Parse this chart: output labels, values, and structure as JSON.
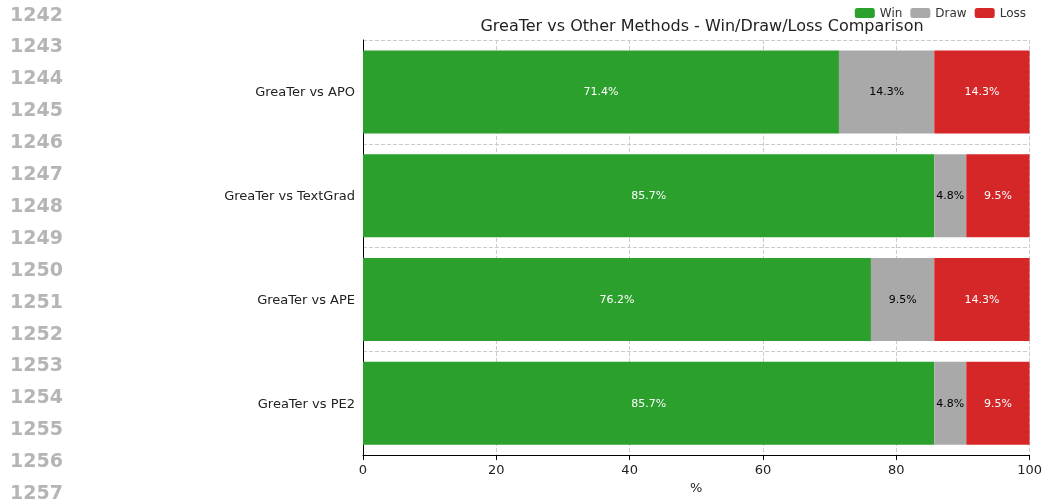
{
  "chart_data": {
    "type": "bar",
    "orientation": "horizontal",
    "stacked": true,
    "title": "GreaTer vs Other Methods - Win/Draw/Loss Comparison",
    "xlabel": "%",
    "categories": [
      "GreaTer vs APO",
      "GreaTer vs TextGrad",
      "GreaTer vs APE",
      "GreaTer vs PE2"
    ],
    "series": [
      {
        "name": "Win",
        "color": "#2ca02c",
        "values": [
          71.4,
          85.7,
          76.2,
          85.7
        ],
        "value_labels": [
          "71.4%",
          "85.7%",
          "76.2%",
          "85.7%"
        ]
      },
      {
        "name": "Draw",
        "color": "#a9a9a9",
        "values": [
          14.3,
          4.8,
          9.5,
          4.8
        ],
        "value_labels": [
          "14.3%",
          "4.8%",
          "9.5%",
          "4.8%"
        ]
      },
      {
        "name": "Loss",
        "color": "#d62728",
        "values": [
          14.3,
          9.5,
          14.3,
          9.5
        ],
        "value_labels": [
          "14.3%",
          "9.5%",
          "14.3%",
          "9.5%"
        ]
      }
    ],
    "xlim": [
      0,
      100
    ],
    "xticks": [
      0,
      20,
      40,
      60,
      80,
      100
    ],
    "grid": true,
    "legend": "top right",
    "annotations": [
      "1242",
      "1243",
      "1244",
      "1245",
      "1246",
      "1247",
      "1248",
      "1249",
      "1250",
      "1251",
      "1252",
      "1253",
      "1254",
      "1255",
      "1256",
      "1257"
    ]
  }
}
